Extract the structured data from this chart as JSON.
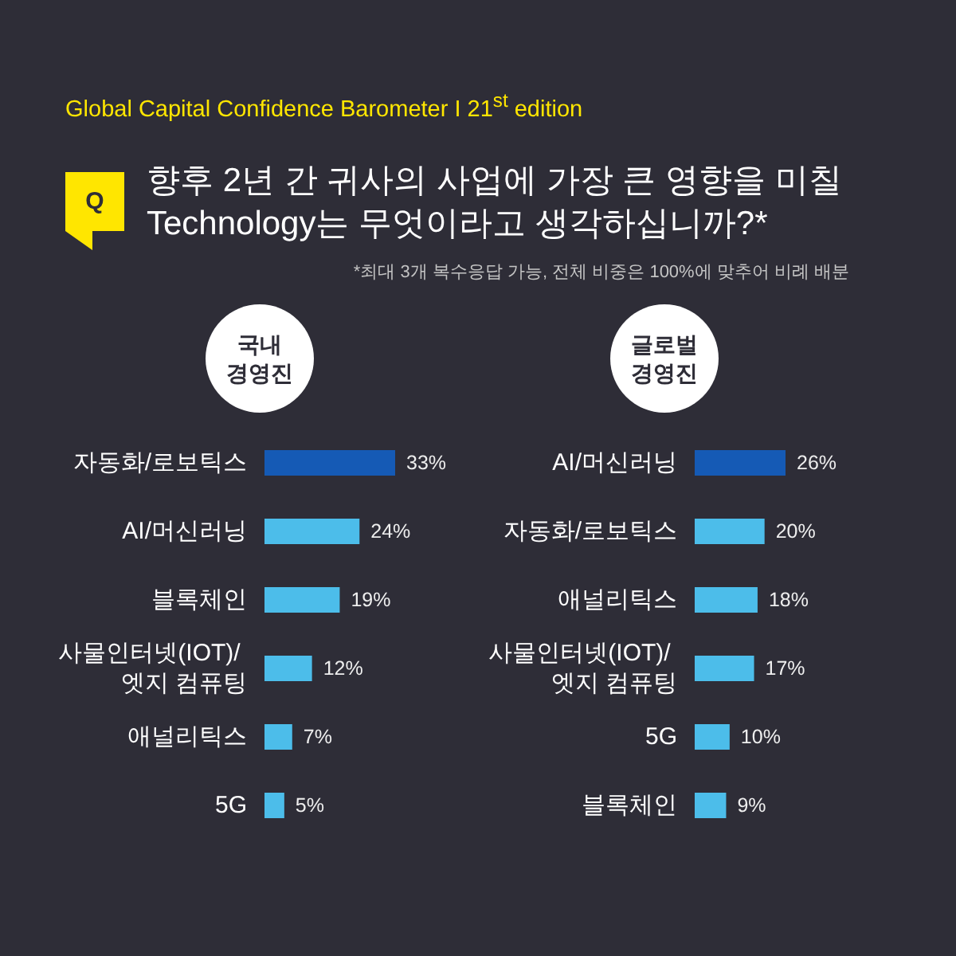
{
  "chart_data": [
    {
      "type": "other",
      "subtitle": "Global Capital Confidence Barometer I 21$^{st}$ edition",
      "title": "향후 2년 간 귀사의 사업에 가장 큰 영향을 미칠 Technology는 무엇이라고 생각하십니까?*",
      "annotations": [
        "Q",
        "*최대 3개 복수응답 가능, 전체 비중은 100%에 맞추어 비례 배분"
      ]
    },
    {
      "type": "bar",
      "orientation": "horizontal",
      "title": "국내 경영진",
      "categories": [
        "자동화/로보틱스",
        "AI/머신러닝",
        "블록체인",
        "사물인터넷(IOT)/ 엣지 컴퓨팅",
        "애널리틱스",
        "5G"
      ],
      "values": [
        33,
        24,
        19,
        12,
        7,
        5
      ],
      "value_labels": [
        "33%",
        "24%",
        "19%",
        "12%",
        "7%",
        "5%"
      ],
      "colors": [
        "#155ab5",
        "#4cbdea",
        "#4cbdea",
        "#4cbdea",
        "#4cbdea",
        "#4cbdea"
      ],
      "tick_labels": "y"
    },
    {
      "type": "bar",
      "orientation": "horizontal",
      "title": "글로벌 경영진",
      "categories": [
        "AI/머신러닝",
        "자동화/로보틱스",
        "애널리틱스",
        "사물인터넷(IOT)/ 엣지 컴퓨팅",
        "5G",
        "블록체인"
      ],
      "values": [
        26,
        20,
        18,
        17,
        10,
        9
      ],
      "value_labels": [
        "26%",
        "20%",
        "18%",
        "17%",
        "10%",
        "9%"
      ],
      "colors": [
        "#155ab5",
        "#4cbdea",
        "#4cbdea",
        "#4cbdea",
        "#4cbdea",
        "#4cbdea"
      ],
      "tick_labels": "y"
    }
  ]
}
